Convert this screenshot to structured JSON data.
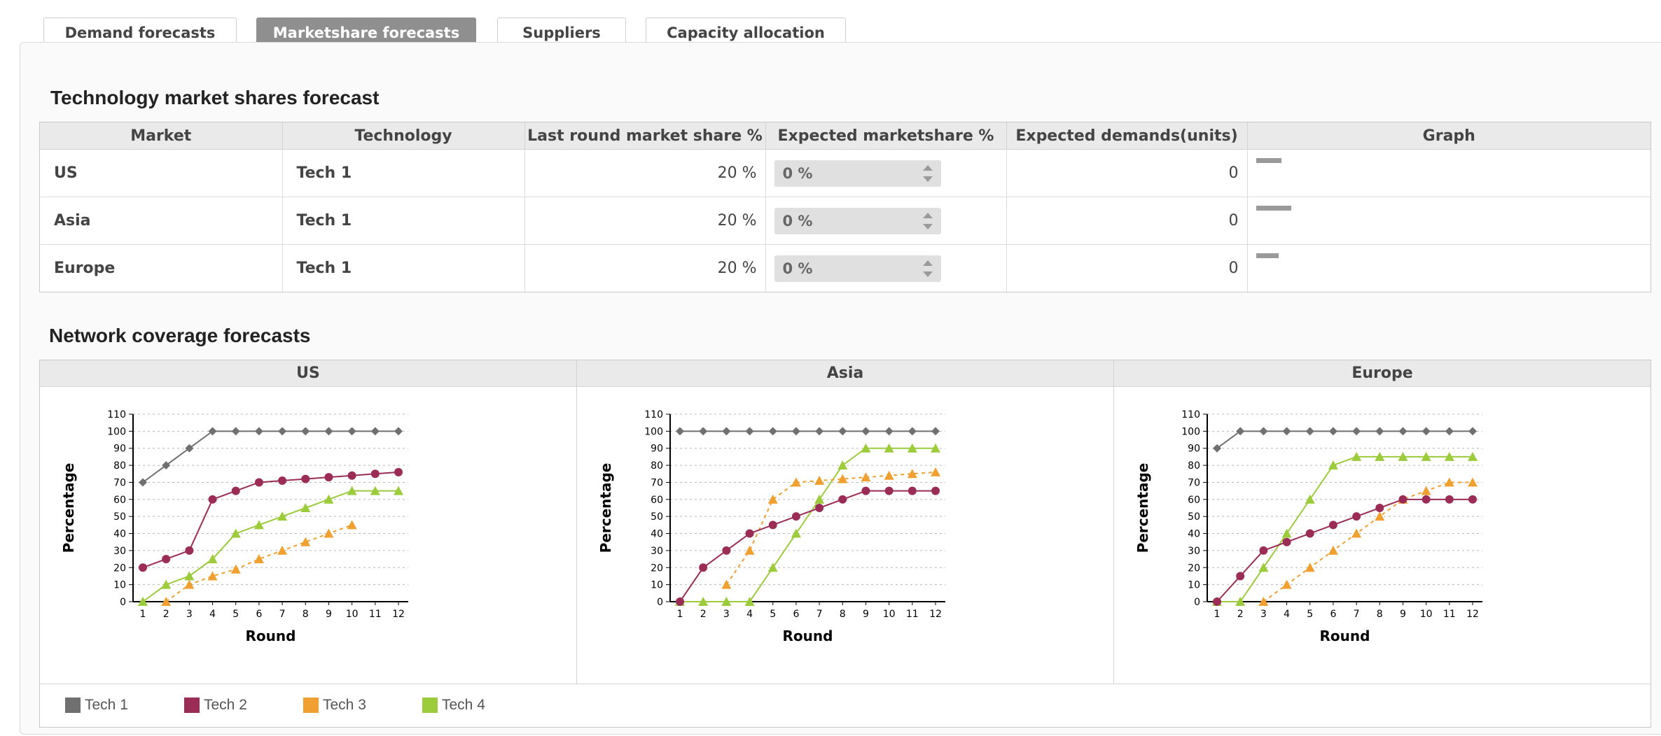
{
  "tabs": [
    {
      "label": "Demand forecasts",
      "active": false
    },
    {
      "label": "Marketshare forecasts",
      "active": true
    },
    {
      "label": "Suppliers",
      "active": false
    },
    {
      "label": "Capacity allocation",
      "active": false
    }
  ],
  "market_share": {
    "title": "Technology market shares forecast",
    "columns": [
      "Market",
      "Technology",
      "Last round market share %",
      "Expected marketshare %",
      "Expected demands(units)",
      "Graph"
    ],
    "rows": [
      {
        "market": "US",
        "technology": "Tech 1",
        "last_share": "20 %",
        "expected_share": "0 %",
        "expected_demand": "0",
        "graph_bar": 0.1
      },
      {
        "market": "Asia",
        "technology": "Tech 1",
        "last_share": "20 %",
        "expected_share": "0 %",
        "expected_demand": "0",
        "graph_bar": 0.14
      },
      {
        "market": "Europe",
        "technology": "Tech 1",
        "last_share": "20 %",
        "expected_share": "0 %",
        "expected_demand": "0",
        "graph_bar": 0.09
      }
    ]
  },
  "network": {
    "title": "Network coverage forecasts",
    "legend": [
      {
        "label": "Tech 1",
        "color": "#707070"
      },
      {
        "label": "Tech 2",
        "color": "#9b2c55"
      },
      {
        "label": "Tech 3",
        "color": "#f0a030"
      },
      {
        "label": "Tech 4",
        "color": "#9ccb3c"
      }
    ]
  },
  "chart_data": [
    {
      "type": "line",
      "title": "US",
      "xlabel": "Round",
      "ylabel": "Percentage",
      "x": [
        1,
        2,
        3,
        4,
        5,
        6,
        7,
        8,
        9,
        10,
        11,
        12
      ],
      "ylim": [
        0,
        110
      ],
      "yticks": [
        0,
        10,
        20,
        30,
        40,
        50,
        60,
        70,
        80,
        90,
        100,
        110
      ],
      "grid": true,
      "series": [
        {
          "name": "Tech 1",
          "values": [
            70,
            80,
            90,
            100,
            100,
            100,
            100,
            100,
            100,
            100,
            100,
            100
          ]
        },
        {
          "name": "Tech 2",
          "values": [
            20,
            25,
            30,
            60,
            65,
            70,
            71,
            72,
            73,
            74,
            75,
            76
          ]
        },
        {
          "name": "Tech 3",
          "values": [
            null,
            0,
            10,
            15,
            19,
            25,
            30,
            35,
            40,
            45,
            null,
            null
          ]
        },
        {
          "name": "Tech 4",
          "values": [
            0,
            10,
            15,
            25,
            40,
            45,
            50,
            55,
            60,
            65,
            65,
            65
          ]
        }
      ]
    },
    {
      "type": "line",
      "title": "Asia",
      "xlabel": "Round",
      "ylabel": "Percentage",
      "x": [
        1,
        2,
        3,
        4,
        5,
        6,
        7,
        8,
        9,
        10,
        11,
        12
      ],
      "ylim": [
        0,
        110
      ],
      "yticks": [
        0,
        10,
        20,
        30,
        40,
        50,
        60,
        70,
        80,
        90,
        100,
        110
      ],
      "grid": true,
      "series": [
        {
          "name": "Tech 1",
          "values": [
            100,
            100,
            100,
            100,
            100,
            100,
            100,
            100,
            100,
            100,
            100,
            100
          ]
        },
        {
          "name": "Tech 2",
          "values": [
            0,
            20,
            30,
            40,
            45,
            50,
            55,
            60,
            65,
            65,
            65,
            65
          ]
        },
        {
          "name": "Tech 3",
          "values": [
            null,
            null,
            10,
            30,
            60,
            70,
            71,
            72,
            73,
            74,
            75,
            76
          ]
        },
        {
          "name": "Tech 4",
          "values": [
            0,
            0,
            0,
            0,
            20,
            40,
            60,
            80,
            90,
            90,
            90,
            90
          ]
        }
      ]
    },
    {
      "type": "line",
      "title": "Europe",
      "xlabel": "Round",
      "ylabel": "Percentage",
      "x": [
        1,
        2,
        3,
        4,
        5,
        6,
        7,
        8,
        9,
        10,
        11,
        12
      ],
      "ylim": [
        0,
        110
      ],
      "yticks": [
        0,
        10,
        20,
        30,
        40,
        50,
        60,
        70,
        80,
        90,
        100,
        110
      ],
      "grid": true,
      "series": [
        {
          "name": "Tech 1",
          "values": [
            90,
            100,
            100,
            100,
            100,
            100,
            100,
            100,
            100,
            100,
            100,
            100
          ]
        },
        {
          "name": "Tech 2",
          "values": [
            0,
            15,
            30,
            35,
            40,
            45,
            50,
            55,
            60,
            60,
            60,
            60
          ]
        },
        {
          "name": "Tech 3",
          "values": [
            null,
            null,
            0,
            10,
            20,
            30,
            40,
            50,
            60,
            65,
            70,
            70
          ]
        },
        {
          "name": "Tech 4",
          "values": [
            0,
            0,
            20,
            40,
            60,
            80,
            85,
            85,
            85,
            85,
            85,
            85
          ]
        }
      ]
    }
  ]
}
